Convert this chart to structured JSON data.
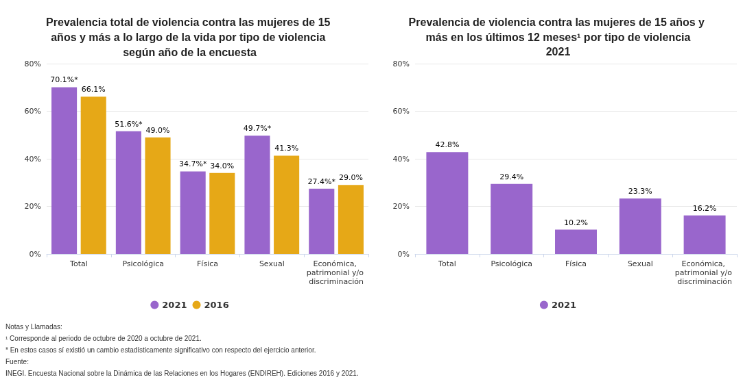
{
  "chart_data": [
    {
      "type": "bar",
      "title": "Prevalencia total de violencia contra las mujeres de 15 años y más a lo largo de la vida por tipo de violencia según año de la encuesta",
      "categories": [
        "Total",
        "Psicológica",
        "Física",
        "Sexual",
        "Económica, patrimonial y/o discriminación"
      ],
      "series": [
        {
          "name": "2021",
          "color": "#9966cc",
          "values": [
            70.1,
            51.6,
            34.7,
            49.7,
            27.4
          ],
          "value_labels": [
            "70.1%*",
            "51.6%*",
            "34.7%*",
            "49.7%*",
            "27.4%*"
          ]
        },
        {
          "name": "2016",
          "color": "#e6a817",
          "values": [
            66.1,
            49.0,
            34.0,
            41.3,
            29.0
          ],
          "value_labels": [
            "66.1%",
            "49.0%",
            "34.0%",
            "41.3%",
            "29.0%"
          ]
        }
      ],
      "ylim": [
        0,
        80
      ],
      "yticks": [
        {
          "value": 0,
          "label": "0%"
        },
        {
          "value": 20,
          "label": "20%"
        },
        {
          "value": 40,
          "label": "40%"
        },
        {
          "value": 60,
          "label": "60%"
        },
        {
          "value": 80,
          "label": "80%"
        }
      ],
      "grid": "y",
      "legend": "bottom",
      "annotations": [
        "Notas y Llamadas:",
        "¹ Corresponde al periodo de octubre de 2020 a octubre de 2021.",
        "* En estos casos sí existió un cambio estadísticamente significativo con respecto del ejercicio anterior.",
        "Fuente:",
        "INEGI. Encuesta Nacional sobre la Dinámica de las Relaciones en los Hogares (ENDIREH). Ediciones 2016 y 2021."
      ]
    },
    {
      "type": "bar",
      "title": "Prevalencia de violencia contra las mujeres de 15 años y más en los últimos 12 meses¹ por tipo de violencia",
      "subtitle": "2021",
      "categories": [
        "Total",
        "Psicológica",
        "Física",
        "Sexual",
        "Económica, patrimonial y/o discriminación"
      ],
      "series": [
        {
          "name": "2021",
          "color": "#9966cc",
          "values": [
            42.8,
            29.4,
            10.2,
            23.3,
            16.2
          ],
          "value_labels": [
            "42.8%",
            "29.4%",
            "10.2%",
            "23.3%",
            "16.2%"
          ]
        }
      ],
      "ylim": [
        0,
        80
      ],
      "yticks": [
        {
          "value": 0,
          "label": "0%"
        },
        {
          "value": 20,
          "label": "20%"
        },
        {
          "value": 40,
          "label": "40%"
        },
        {
          "value": 60,
          "label": "60%"
        },
        {
          "value": 80,
          "label": "80%"
        }
      ],
      "grid": "y",
      "legend": "bottom"
    }
  ]
}
